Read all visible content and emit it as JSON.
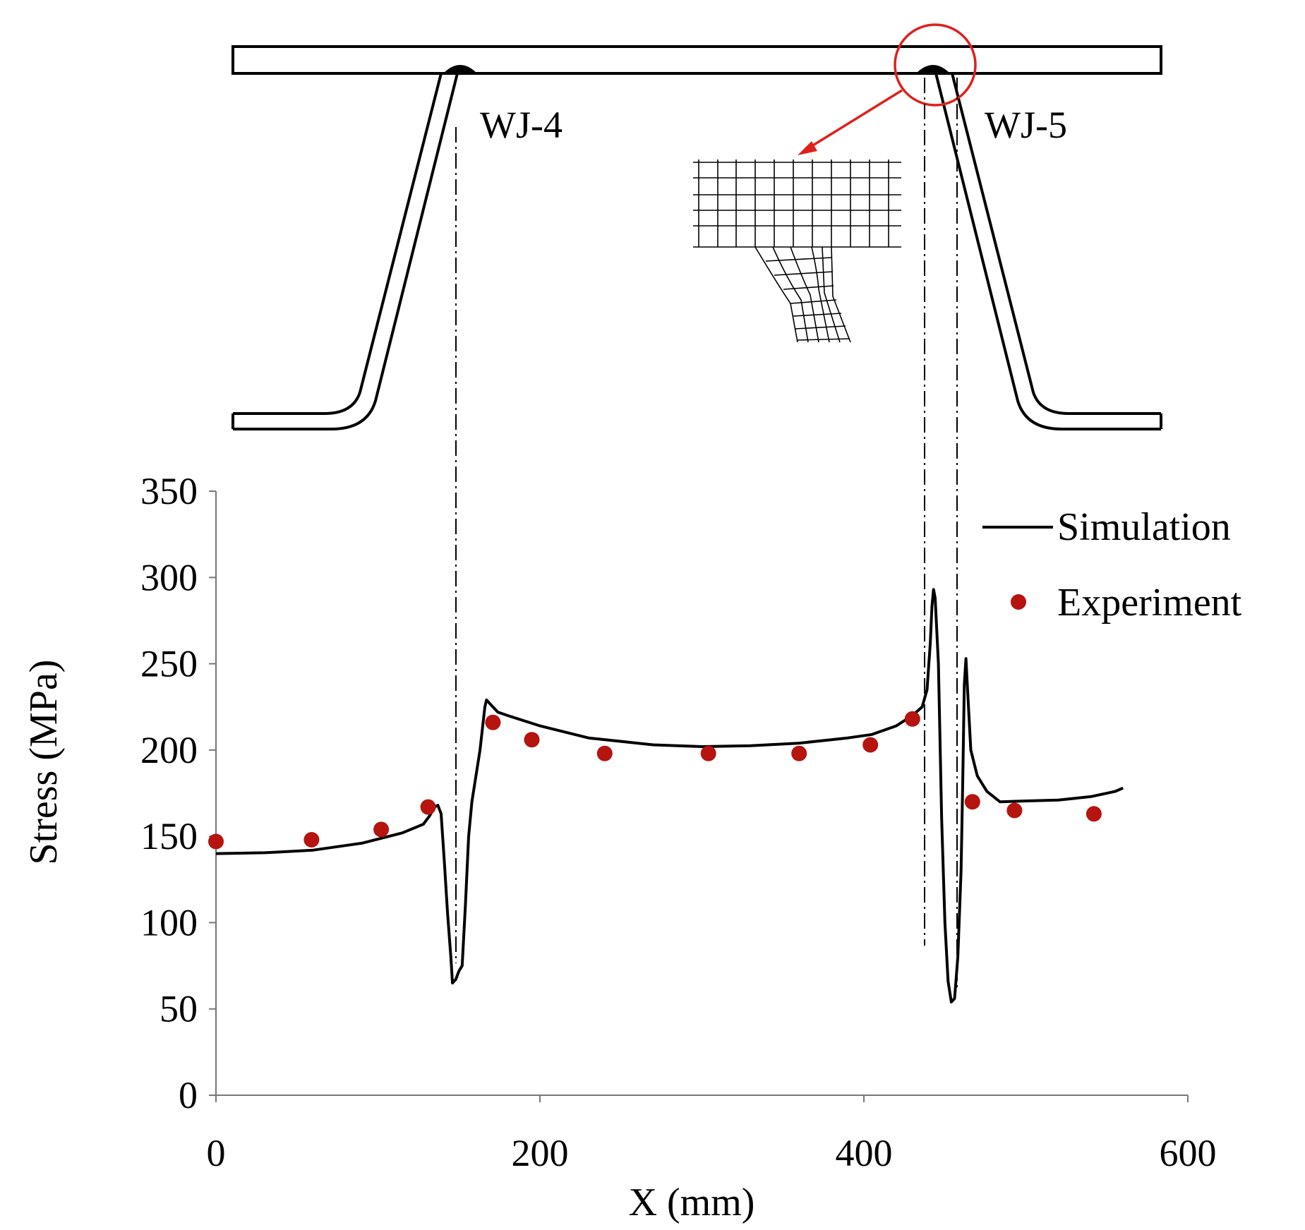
{
  "diagram": {
    "labels": {
      "left_joint": "WJ-4",
      "right_joint": "WJ-5"
    },
    "highlight_color": "#e0201c"
  },
  "chart_data": {
    "type": "line",
    "xlabel": "X (mm)",
    "ylabel": "Stress (MPa)",
    "xlim": [
      0,
      600
    ],
    "ylim": [
      0,
      350
    ],
    "x_ticks": [
      0,
      200,
      400,
      600
    ],
    "y_ticks": [
      0,
      50,
      100,
      150,
      200,
      250,
      300,
      350
    ],
    "grid": false,
    "legend": {
      "placement": "top-right",
      "entries": [
        "Simulation",
        "Experiment"
      ]
    },
    "series": [
      {
        "name": "Simulation",
        "kind": "line",
        "color": "#000000",
        "points": [
          [
            0,
            140
          ],
          [
            30,
            140.5
          ],
          [
            60,
            142
          ],
          [
            90,
            146
          ],
          [
            115,
            152
          ],
          [
            128,
            157
          ],
          [
            132,
            162
          ],
          [
            135,
            167
          ],
          [
            137,
            168
          ],
          [
            139,
            163
          ],
          [
            141,
            135
          ],
          [
            143,
            105
          ],
          [
            145,
            80
          ],
          [
            146,
            65
          ],
          [
            148,
            67
          ],
          [
            150,
            72
          ],
          [
            152,
            75
          ],
          [
            154,
            110
          ],
          [
            156,
            150
          ],
          [
            158,
            170
          ],
          [
            163,
            200
          ],
          [
            166,
            225
          ],
          [
            167,
            229
          ],
          [
            170,
            226
          ],
          [
            174,
            222
          ],
          [
            180,
            220
          ],
          [
            200,
            214
          ],
          [
            230,
            207
          ],
          [
            270,
            203
          ],
          [
            300,
            202
          ],
          [
            330,
            202.5
          ],
          [
            360,
            204
          ],
          [
            390,
            207
          ],
          [
            405,
            209
          ],
          [
            420,
            214
          ],
          [
            430,
            220
          ],
          [
            436,
            225
          ],
          [
            439,
            235
          ],
          [
            441,
            262
          ],
          [
            442,
            283
          ],
          [
            443,
            293
          ],
          [
            444,
            288
          ],
          [
            446,
            250
          ],
          [
            448,
            160
          ],
          [
            450,
            100
          ],
          [
            452,
            66
          ],
          [
            454,
            54
          ],
          [
            456,
            56
          ],
          [
            458,
            80
          ],
          [
            460,
            130
          ],
          [
            461,
            180
          ],
          [
            462,
            238
          ],
          [
            463,
            253
          ],
          [
            464,
            235
          ],
          [
            466,
            200
          ],
          [
            470,
            185
          ],
          [
            476,
            176
          ],
          [
            484,
            170
          ],
          [
            500,
            170.5
          ],
          [
            520,
            171
          ],
          [
            540,
            173
          ],
          [
            555,
            176
          ],
          [
            560,
            178
          ]
        ]
      },
      {
        "name": "Experiment",
        "kind": "scatter",
        "color": "#b5140f",
        "points": [
          [
            0,
            147
          ],
          [
            59,
            148
          ],
          [
            102,
            154
          ],
          [
            131,
            167
          ],
          [
            171,
            216
          ],
          [
            195,
            206
          ],
          [
            240,
            198
          ],
          [
            304,
            198
          ],
          [
            360,
            198
          ],
          [
            404,
            203
          ],
          [
            430,
            218
          ],
          [
            467,
            170
          ],
          [
            493,
            165
          ],
          [
            542,
            163
          ]
        ]
      }
    ]
  }
}
